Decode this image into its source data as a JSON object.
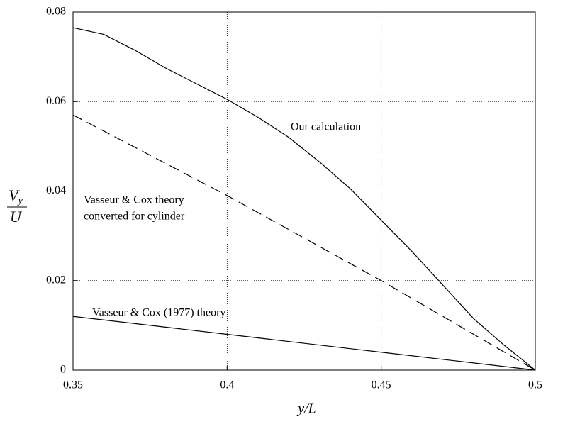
{
  "chart_data": {
    "type": "line",
    "xlabel": "y/L",
    "ylabel": {
      "main": "V",
      "sub": "y",
      "denominator": "U"
    },
    "annotations": [
      "Our calculation",
      "Vasseur & Cox theory",
      "converted for cylinder",
      "Vasseur & Cox (1977) theory"
    ],
    "series": [
      {
        "color": "#000000",
        "dash": false,
        "x": [
          0.35,
          0.36,
          0.37,
          0.38,
          0.39,
          0.4,
          0.41,
          0.42,
          0.43,
          0.44,
          0.45,
          0.46,
          0.47,
          0.48,
          0.49,
          0.5
        ],
        "values": [
          0.0765,
          0.075,
          0.0715,
          0.0675,
          0.064,
          0.0605,
          0.0565,
          0.052,
          0.0465,
          0.0405,
          0.0335,
          0.0265,
          0.019,
          0.0115,
          0.0055,
          0
        ]
      },
      {
        "color": "#000000",
        "dash": true,
        "x": [
          0.35,
          0.4,
          0.45,
          0.5
        ],
        "values": [
          0.057,
          0.039,
          0.02,
          0
        ]
      },
      {
        "color": "#000000",
        "dash": false,
        "x": [
          0.35,
          0.4,
          0.45,
          0.5
        ],
        "values": [
          0.012,
          0.008,
          0.004,
          0
        ]
      }
    ],
    "xlim": [
      0.35,
      0.5
    ],
    "xticks": [
      0.35,
      0.4,
      0.45,
      0.5
    ],
    "ylim": [
      0,
      0.08
    ],
    "yticks": [
      0,
      0.02,
      0.04,
      0.06,
      0.08
    ],
    "grid": true
  }
}
